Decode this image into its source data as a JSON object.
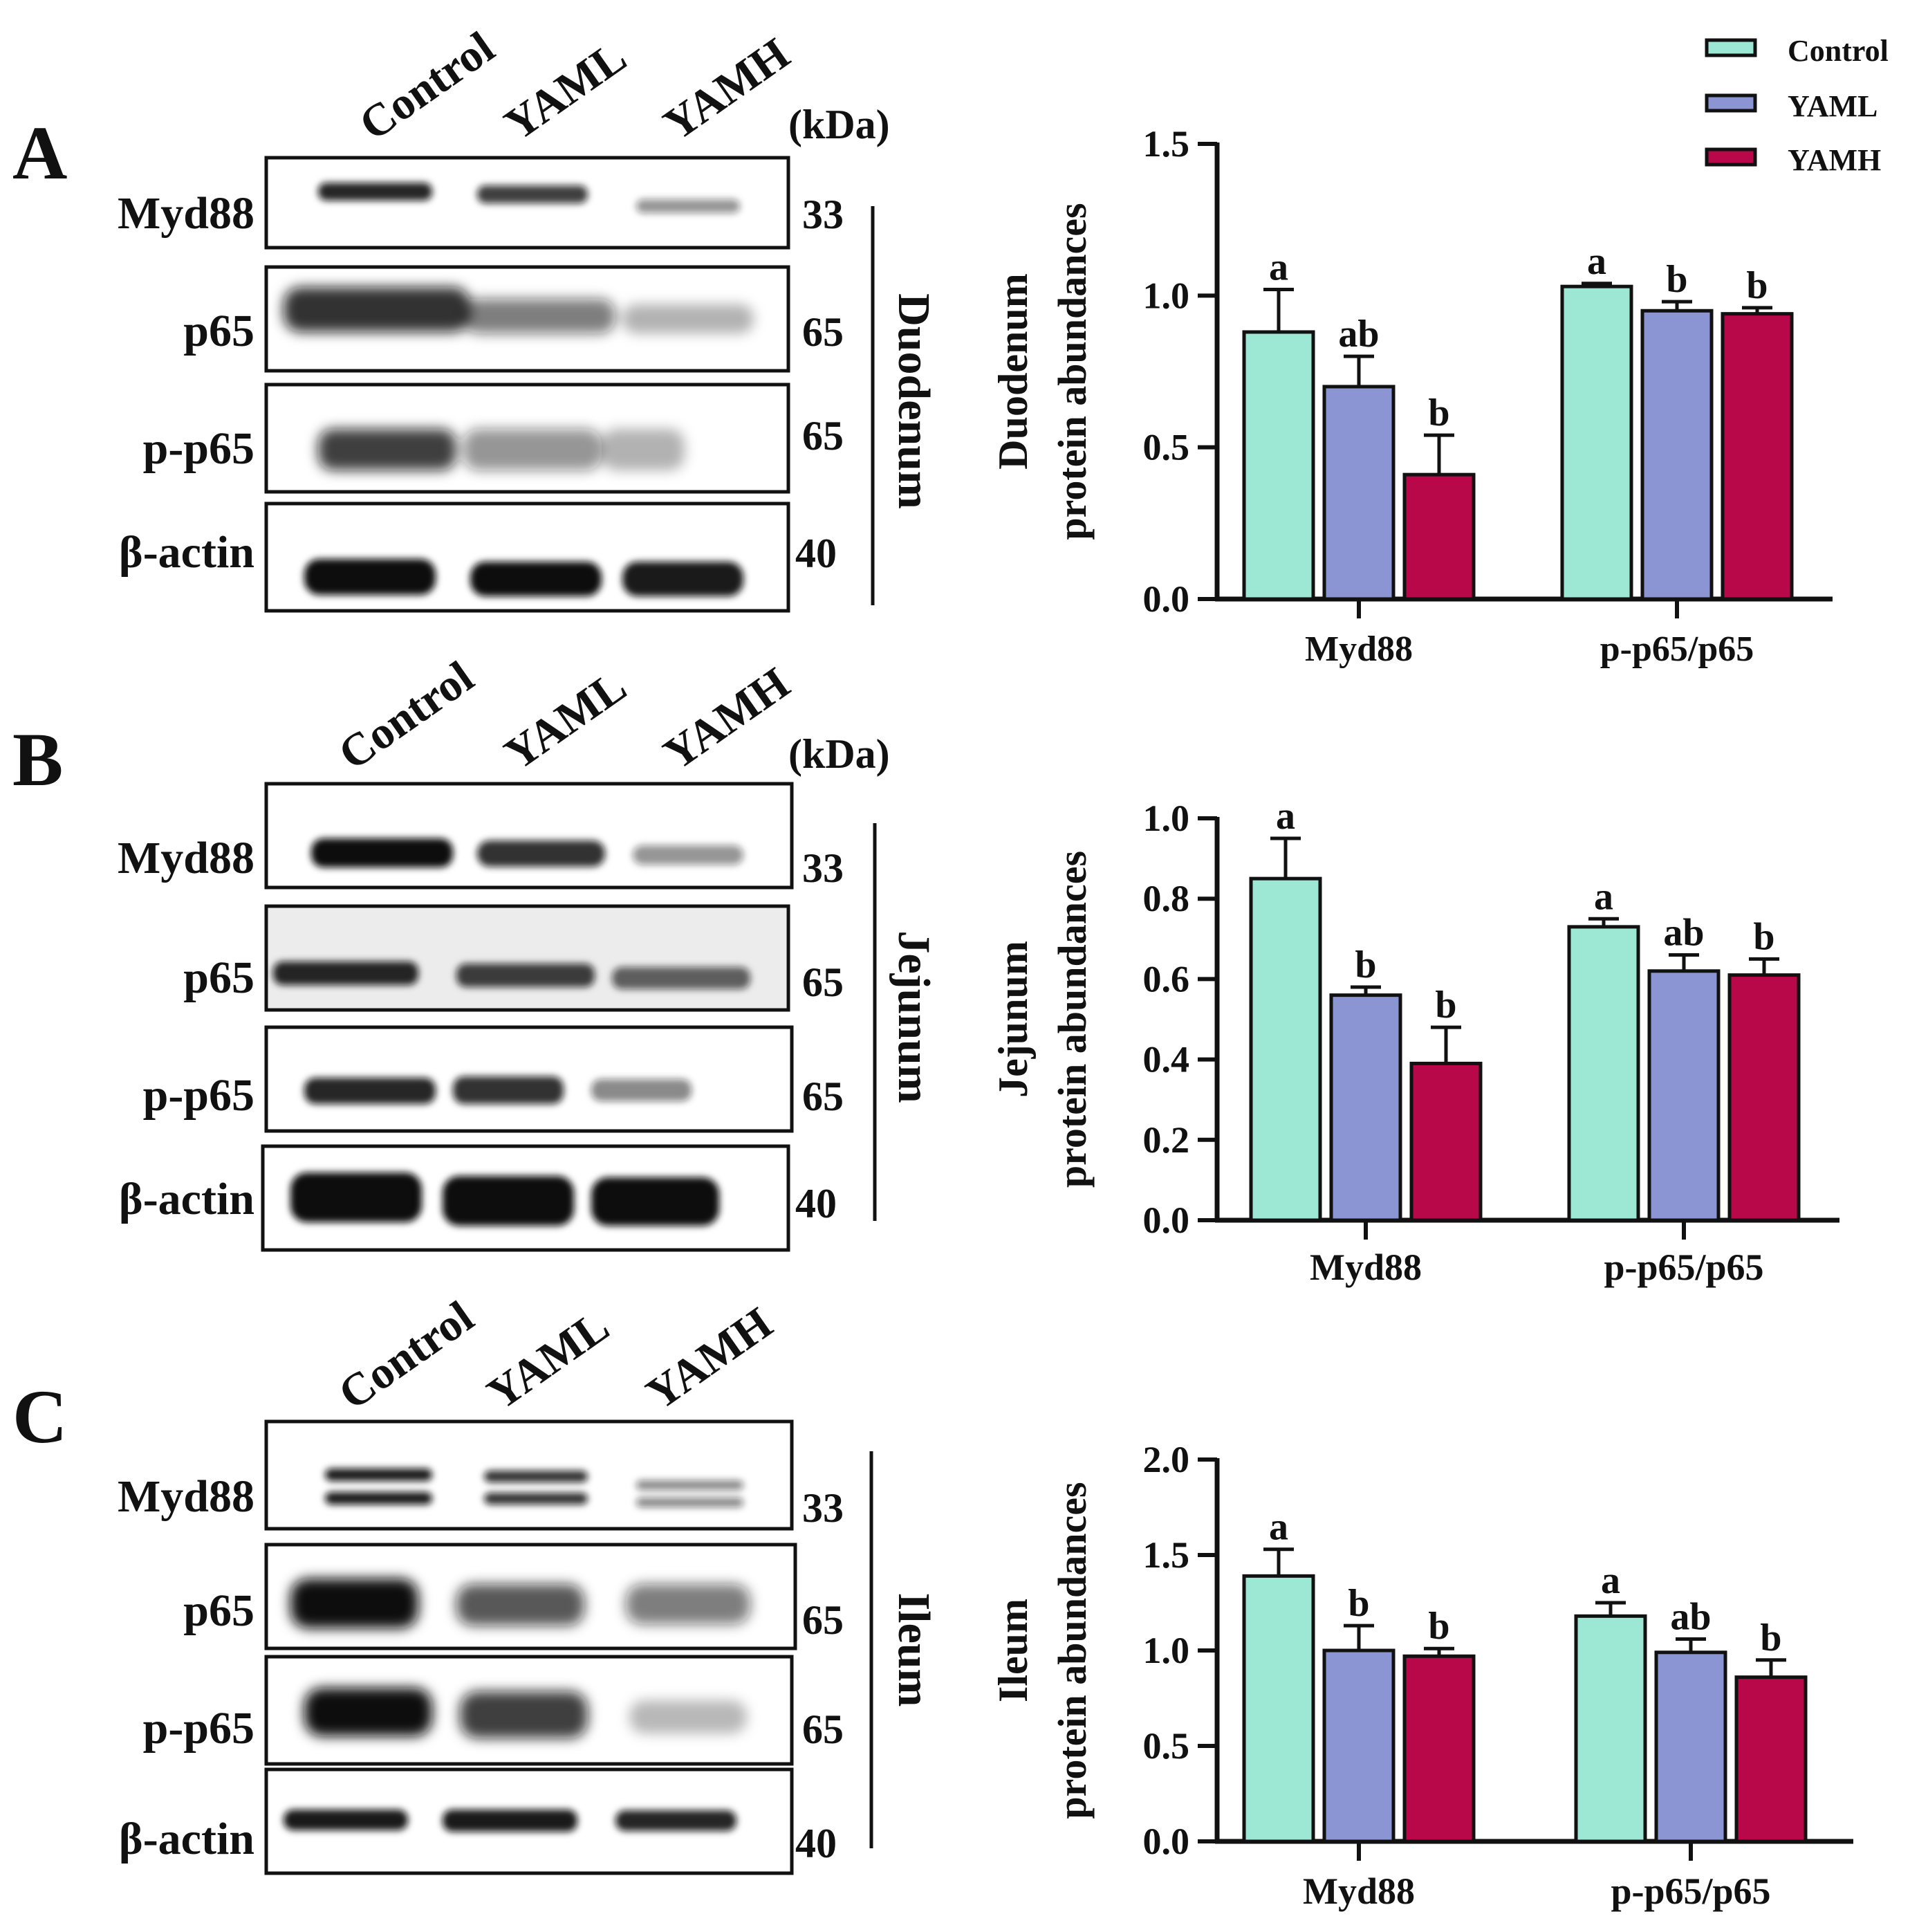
{
  "legend": {
    "items": [
      {
        "label": "Control",
        "color": "#9de8d4"
      },
      {
        "label": "YAML",
        "color": "#8b95d4"
      },
      {
        "label": "YAMH",
        "color": "#b8084a"
      }
    ]
  },
  "blots": [
    {
      "letter": "A",
      "tissue": "Duodenum",
      "kda_label": "(kDa)",
      "lanes": [
        "Control",
        "YAML",
        "YAMH"
      ],
      "rows": [
        {
          "protein": "Myd88",
          "kda": "33",
          "intensity": [
            0.9,
            0.8,
            0.45
          ],
          "doublet": false
        },
        {
          "protein": "p65",
          "kda": "65",
          "intensity": [
            0.9,
            0.6,
            0.35
          ],
          "doublet": false
        },
        {
          "protein": "p-p65",
          "kda": "65",
          "intensity": [
            0.85,
            0.55,
            0.35
          ],
          "doublet": false
        },
        {
          "protein": "β-actin",
          "kda": "40",
          "intensity": [
            1.0,
            1.0,
            0.95
          ],
          "doublet": false
        }
      ]
    },
    {
      "letter": "B",
      "tissue": "Jejunum",
      "kda_label": "(kDa)",
      "lanes": [
        "Control",
        "YAML",
        "YAMH"
      ],
      "rows": [
        {
          "protein": "Myd88",
          "kda": "33",
          "intensity": [
            1.0,
            0.85,
            0.45
          ],
          "doublet": false
        },
        {
          "protein": "p65",
          "kda": "65",
          "intensity": [
            0.9,
            0.8,
            0.65
          ],
          "doublet": false
        },
        {
          "protein": "p-p65",
          "kda": "65",
          "intensity": [
            0.9,
            0.85,
            0.5
          ],
          "doublet": false
        },
        {
          "protein": "β-actin",
          "kda": "40",
          "intensity": [
            1.0,
            1.0,
            1.0
          ],
          "doublet": false
        }
      ]
    },
    {
      "letter": "C",
      "tissue": "Ileum",
      "kda_label": "",
      "lanes": [
        "Control",
        "YAML",
        "YAMH"
      ],
      "rows": [
        {
          "protein": "Myd88",
          "kda": "33",
          "intensity": [
            0.95,
            0.85,
            0.5
          ],
          "doublet": true
        },
        {
          "protein": "p65",
          "kda": "65",
          "intensity": [
            1.0,
            0.7,
            0.55
          ],
          "doublet": false
        },
        {
          "protein": "p-p65",
          "kda": "65",
          "intensity": [
            1.0,
            0.8,
            0.3
          ],
          "doublet": false
        },
        {
          "protein": "β-actin",
          "kda": "40",
          "intensity": [
            0.95,
            0.95,
            0.9
          ],
          "doublet": false
        }
      ]
    }
  ],
  "chart_data": [
    {
      "type": "bar",
      "title": "",
      "ylabel": "Duodenum\nprotein abundances",
      "xlabel": "",
      "categories": [
        "Myd88",
        "p-p65/p65"
      ],
      "ylim": [
        0,
        1.5
      ],
      "yticks": [
        "0.0",
        "0.5",
        "1.0",
        "1.5"
      ],
      "series": [
        {
          "name": "Control",
          "values": [
            0.88,
            1.03
          ],
          "errors": [
            0.14,
            0.01
          ],
          "letters": [
            "a",
            "a"
          ]
        },
        {
          "name": "YAML",
          "values": [
            0.7,
            0.95
          ],
          "errors": [
            0.1,
            0.03
          ],
          "letters": [
            "ab",
            "b"
          ]
        },
        {
          "name": "YAMH",
          "values": [
            0.41,
            0.94
          ],
          "errors": [
            0.13,
            0.02
          ],
          "letters": [
            "b",
            "b"
          ]
        }
      ]
    },
    {
      "type": "bar",
      "title": "",
      "ylabel": "Jejunum\nprotein abundances",
      "xlabel": "",
      "categories": [
        "Myd88",
        "p-p65/p65"
      ],
      "ylim": [
        0,
        1.0
      ],
      "yticks": [
        "0.0",
        "0.2",
        "0.4",
        "0.6",
        "0.8",
        "1.0"
      ],
      "series": [
        {
          "name": "Control",
          "values": [
            0.85,
            0.73
          ],
          "errors": [
            0.1,
            0.02
          ],
          "letters": [
            "a",
            "a"
          ]
        },
        {
          "name": "YAML",
          "values": [
            0.56,
            0.62
          ],
          "errors": [
            0.02,
            0.04
          ],
          "letters": [
            "b",
            "ab"
          ]
        },
        {
          "name": "YAMH",
          "values": [
            0.39,
            0.61
          ],
          "errors": [
            0.09,
            0.04
          ],
          "letters": [
            "b",
            "b"
          ]
        }
      ]
    },
    {
      "type": "bar",
      "title": "",
      "ylabel": "Ileum\nprotein abundances",
      "xlabel": "",
      "categories": [
        "Myd88",
        "p-p65/p65"
      ],
      "ylim": [
        0,
        2.0
      ],
      "yticks": [
        "0.0",
        "0.5",
        "1.0",
        "1.5",
        "2.0"
      ],
      "series": [
        {
          "name": "Control",
          "values": [
            1.39,
            1.18
          ],
          "errors": [
            0.14,
            0.07
          ],
          "letters": [
            "a",
            "a"
          ]
        },
        {
          "name": "YAML",
          "values": [
            1.0,
            0.99
          ],
          "errors": [
            0.13,
            0.07
          ],
          "letters": [
            "b",
            "ab"
          ]
        },
        {
          "name": "YAMH",
          "values": [
            0.97,
            0.86
          ],
          "errors": [
            0.04,
            0.09
          ],
          "letters": [
            "b",
            "b"
          ]
        }
      ]
    }
  ]
}
